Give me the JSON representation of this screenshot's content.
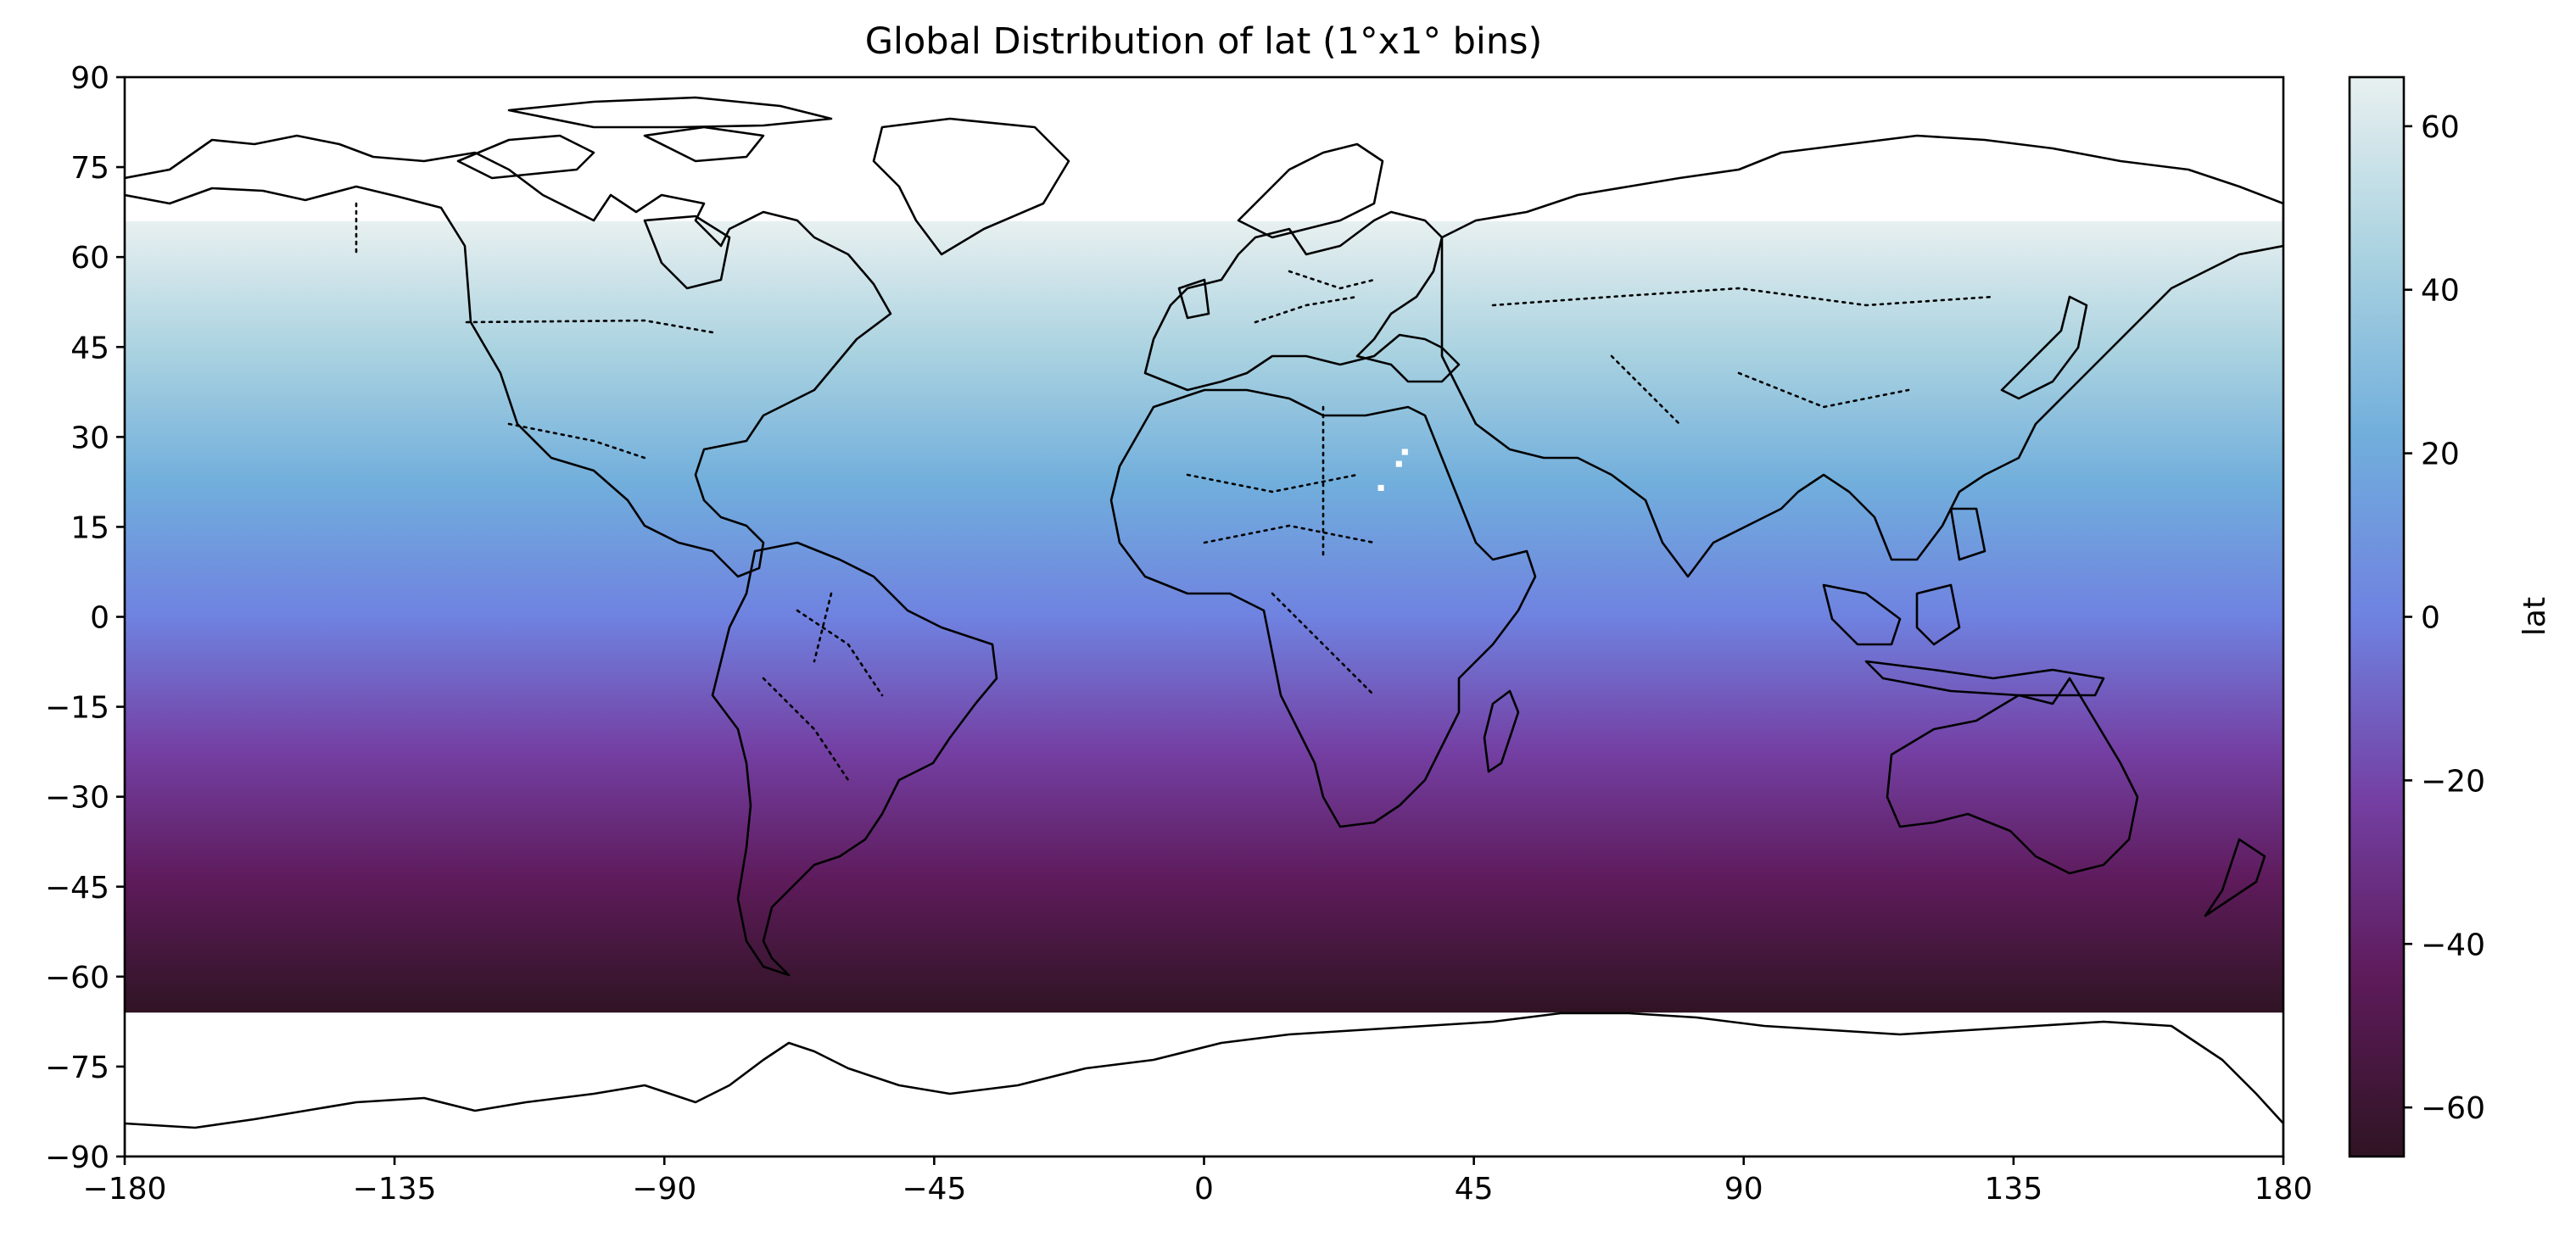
{
  "title": "Global Distribution of lat (1°x1° bins)",
  "colorbar_label": "lat",
  "colormap": "twilight_shifted (dark purple → blue → pale cyan)",
  "colormap_stops": [
    "#2f1423",
    "#5e1b5b",
    "#7440a4",
    "#6f82e0",
    "#71aedc",
    "#a9d2e0",
    "#e8f0f0"
  ],
  "chart_data": {
    "type": "heatmap",
    "title": "Global Distribution of lat (1°x1° bins)",
    "xlabel": "",
    "ylabel": "",
    "xlim": [
      -180,
      180
    ],
    "ylim": [
      -90,
      90
    ],
    "x_ticks": [
      "−180",
      "−135",
      "−90",
      "−45",
      "0",
      "45",
      "90",
      "135",
      "180"
    ],
    "y_ticks": [
      "90",
      "75",
      "60",
      "45",
      "30",
      "15",
      "0",
      "−15",
      "−30",
      "−45",
      "−60",
      "−75",
      "−90"
    ],
    "bin_size_deg": 1,
    "data_lat_range": [
      -66,
      66
    ],
    "value_range": [
      -66,
      66
    ],
    "colorbar": {
      "label": "lat",
      "ticks": [
        "60",
        "40",
        "20",
        "0",
        "−20",
        "−40",
        "−60"
      ]
    },
    "missing_cells_latlon": [
      [
        25,
        32
      ],
      [
        27,
        33
      ],
      [
        21,
        29
      ]
    ],
    "grid": false,
    "overlays": [
      "coastlines",
      "country borders (dotted)"
    ]
  }
}
